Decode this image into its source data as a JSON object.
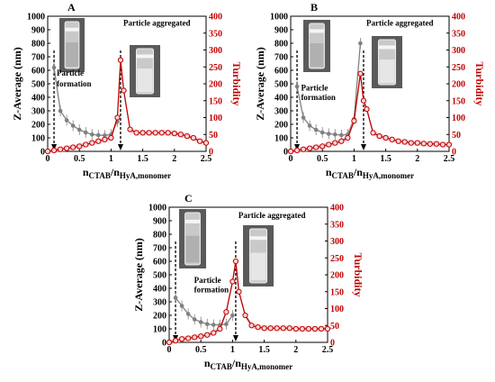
{
  "chart_data": [
    {
      "panel": "A",
      "type": "line",
      "xlabel": "n",
      "xlabel_sub1": "CTAB",
      "xlabel_sep": "/n",
      "xlabel_sub2": "HyA,monomer",
      "ylabel": "Z-Average  (nm)",
      "y2label": "Turbidity",
      "xlim": [
        0,
        2.5
      ],
      "ylim": [
        0,
        1000
      ],
      "y2lim": [
        0,
        400
      ],
      "x_ticks": [
        "0",
        "0.5",
        "1",
        "1.5",
        "2",
        "2.5"
      ],
      "y_ticks": [
        "0",
        "100",
        "200",
        "300",
        "400",
        "500",
        "600",
        "700",
        "800",
        "900",
        "1000"
      ],
      "y2_ticks": [
        "0",
        "50",
        "100",
        "150",
        "200",
        "250",
        "300",
        "350",
        "400"
      ],
      "annotations": [
        {
          "text": "Particle",
          "x": 0.1,
          "y": 560
        },
        {
          "text": "formation",
          "x": 0.1,
          "y": 480
        },
        {
          "text": "Particle aggregated",
          "x": 1.15,
          "y": 930
        }
      ],
      "arrows": [
        {
          "x": 0.1
        },
        {
          "x": 1.15
        }
      ],
      "series": [
        {
          "color": "#808080",
          "axis": "left",
          "x": [
            0.1,
            0.2,
            0.3,
            0.4,
            0.5,
            0.6,
            0.7,
            0.8,
            0.9,
            1.0,
            1.1
          ],
          "y": [
            620,
            300,
            230,
            190,
            160,
            140,
            125,
            120,
            118,
            125,
            220
          ]
        },
        {
          "color": "#c00000",
          "axis": "right",
          "x": [
            0,
            0.1,
            0.2,
            0.3,
            0.4,
            0.5,
            0.6,
            0.7,
            0.8,
            0.9,
            1.0,
            1.1,
            1.15,
            1.2,
            1.3,
            1.4,
            1.5,
            1.6,
            1.7,
            1.8,
            1.9,
            2.0,
            2.1,
            2.2,
            2.3,
            2.4,
            2.5
          ],
          "y": [
            0,
            3,
            6,
            9,
            12,
            15,
            20,
            25,
            30,
            35,
            40,
            100,
            270,
            180,
            65,
            55,
            55,
            55,
            55,
            55,
            55,
            53,
            50,
            45,
            40,
            30,
            25
          ]
        }
      ]
    },
    {
      "panel": "B",
      "type": "line",
      "xlabel": "n",
      "xlabel_sub1": "CTAB",
      "xlabel_sep": "/n",
      "xlabel_sub2": "HyA,monomer",
      "ylabel": "Z-Average  (nm)",
      "y2label": "Turbidity",
      "xlim": [
        0,
        2.5
      ],
      "ylim": [
        0,
        1000
      ],
      "y2lim": [
        0,
        400
      ],
      "x_ticks": [
        "0",
        "0.5",
        "1",
        "1.5",
        "2",
        "2.5"
      ],
      "y_ticks": [
        "0",
        "100",
        "200",
        "300",
        "400",
        "500",
        "600",
        "700",
        "800",
        "900",
        "1000"
      ],
      "y2_ticks": [
        "0",
        "50",
        "100",
        "150",
        "200",
        "250",
        "300",
        "350",
        "400"
      ],
      "annotations": [
        {
          "text": "Particle",
          "x": 0.12,
          "y": 450
        },
        {
          "text": "formation",
          "x": 0.12,
          "y": 380
        },
        {
          "text": "Particle aggregated",
          "x": 1.15,
          "y": 930
        }
      ],
      "arrows": [
        {
          "x": 0.1
        },
        {
          "x": 1.15
        }
      ],
      "series": [
        {
          "color": "#808080",
          "axis": "left",
          "x": [
            0.1,
            0.2,
            0.3,
            0.4,
            0.5,
            0.6,
            0.7,
            0.8,
            0.9,
            1.0,
            1.1
          ],
          "y": [
            480,
            250,
            190,
            160,
            140,
            130,
            125,
            120,
            125,
            240,
            800
          ]
        },
        {
          "color": "#c00000",
          "axis": "right",
          "x": [
            0,
            0.1,
            0.2,
            0.3,
            0.4,
            0.5,
            0.6,
            0.7,
            0.8,
            0.9,
            1.0,
            1.1,
            1.15,
            1.2,
            1.3,
            1.4,
            1.5,
            1.6,
            1.7,
            1.8,
            1.9,
            2.0,
            2.1,
            2.2,
            2.3,
            2.4,
            2.5
          ],
          "y": [
            0,
            3,
            6,
            9,
            12,
            15,
            20,
            25,
            30,
            40,
            90,
            230,
            150,
            125,
            55,
            45,
            40,
            35,
            30,
            28,
            25,
            25,
            23,
            22,
            22,
            20,
            20
          ]
        }
      ]
    },
    {
      "panel": "C",
      "type": "line",
      "xlabel": "n",
      "xlabel_sub1": "CTAB",
      "xlabel_sep": "/n",
      "xlabel_sub2": "HyA,monomer",
      "ylabel": "Z-Average  (nm)",
      "y2label": "Turbidity",
      "xlim": [
        0,
        2.5
      ],
      "ylim": [
        0,
        1000
      ],
      "y2lim": [
        0,
        400
      ],
      "x_ticks": [
        "0",
        "0.5",
        "1",
        "1.5",
        "2",
        "2.5"
      ],
      "y_ticks": [
        "0",
        "100",
        "200",
        "300",
        "400",
        "500",
        "600",
        "700",
        "800",
        "900",
        "1000"
      ],
      "y2_ticks": [
        "0",
        "50",
        "100",
        "150",
        "200",
        "250",
        "300",
        "350",
        "400"
      ],
      "annotations": [
        {
          "text": "Particle",
          "x": 0.35,
          "y": 440
        },
        {
          "text": "formation",
          "x": 0.35,
          "y": 370
        },
        {
          "text": "Particle aggregated",
          "x": 1.05,
          "y": 920
        }
      ],
      "arrows": [
        {
          "x": 0.1
        },
        {
          "x": 1.05
        }
      ],
      "series": [
        {
          "color": "#808080",
          "axis": "left",
          "x": [
            0.1,
            0.2,
            0.3,
            0.4,
            0.5,
            0.6,
            0.7,
            0.8,
            0.9,
            1.0
          ],
          "y": [
            330,
            270,
            210,
            170,
            150,
            135,
            130,
            128,
            135,
            200
          ]
        },
        {
          "color": "#c00000",
          "axis": "right",
          "x": [
            0,
            0.1,
            0.2,
            0.3,
            0.4,
            0.5,
            0.6,
            0.7,
            0.8,
            0.9,
            1.0,
            1.05,
            1.1,
            1.2,
            1.3,
            1.4,
            1.5,
            1.6,
            1.7,
            1.8,
            1.9,
            2.0,
            2.1,
            2.2,
            2.3,
            2.4,
            2.5
          ],
          "y": [
            0,
            5,
            10,
            12,
            15,
            18,
            22,
            28,
            40,
            90,
            180,
            240,
            150,
            80,
            50,
            45,
            42,
            42,
            42,
            42,
            42,
            40,
            40,
            40,
            40,
            40,
            40
          ]
        }
      ]
    }
  ]
}
